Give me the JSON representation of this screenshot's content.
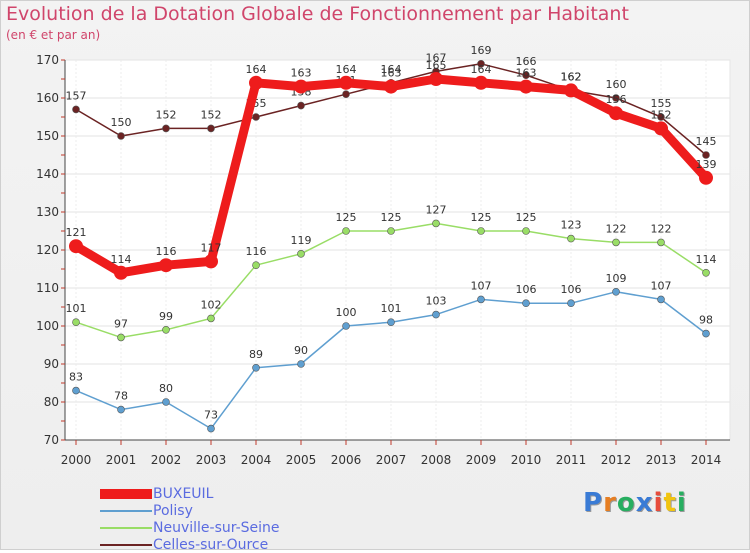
{
  "header": {
    "title": "Evolution de la Dotation Globale de Fonctionnement par Habitant",
    "subtitle": "(en € et par an)"
  },
  "logo": {
    "text": "Proxiti"
  },
  "chart_data": {
    "type": "line",
    "title": "Evolution de la Dotation Globale de Fonctionnement par Habitant",
    "subtitle": "(en € et par an)",
    "x": [
      "2000",
      "2001",
      "2002",
      "2003",
      "2004",
      "2005",
      "2006",
      "2007",
      "2008",
      "2009",
      "2010",
      "2011",
      "2012",
      "2013",
      "2014"
    ],
    "ylim": [
      70,
      170
    ],
    "yticks": [
      70,
      80,
      90,
      100,
      110,
      120,
      130,
      140,
      150,
      160,
      170
    ],
    "grid": true,
    "legend_position": "bottom-left",
    "series": [
      {
        "name": "Celles-sur-Ource",
        "color": "#6b2323",
        "values": [
          157,
          150,
          152,
          152,
          155,
          158,
          161,
          164,
          167,
          169,
          166,
          162,
          160,
          155,
          145
        ]
      },
      {
        "name": "Neuville-sur-Seine",
        "color": "#99dd66",
        "values": [
          101,
          97,
          99,
          102,
          116,
          119,
          125,
          125,
          127,
          125,
          125,
          123,
          122,
          122,
          114
        ]
      },
      {
        "name": "Polisy",
        "color": "#5f9fd0",
        "values": [
          83,
          78,
          80,
          73,
          89,
          90,
          100,
          101,
          103,
          107,
          106,
          106,
          109,
          107,
          98
        ]
      },
      {
        "name": "BUXEUIL",
        "color": "#ee1c1c",
        "values": [
          121,
          114,
          116,
          117,
          164,
          163,
          164,
          163,
          165,
          164,
          163,
          162,
          156,
          152,
          139
        ]
      }
    ],
    "legend_order": [
      "BUXEUIL",
      "Polisy",
      "Neuville-sur-Seine",
      "Celles-sur-Ource"
    ]
  }
}
